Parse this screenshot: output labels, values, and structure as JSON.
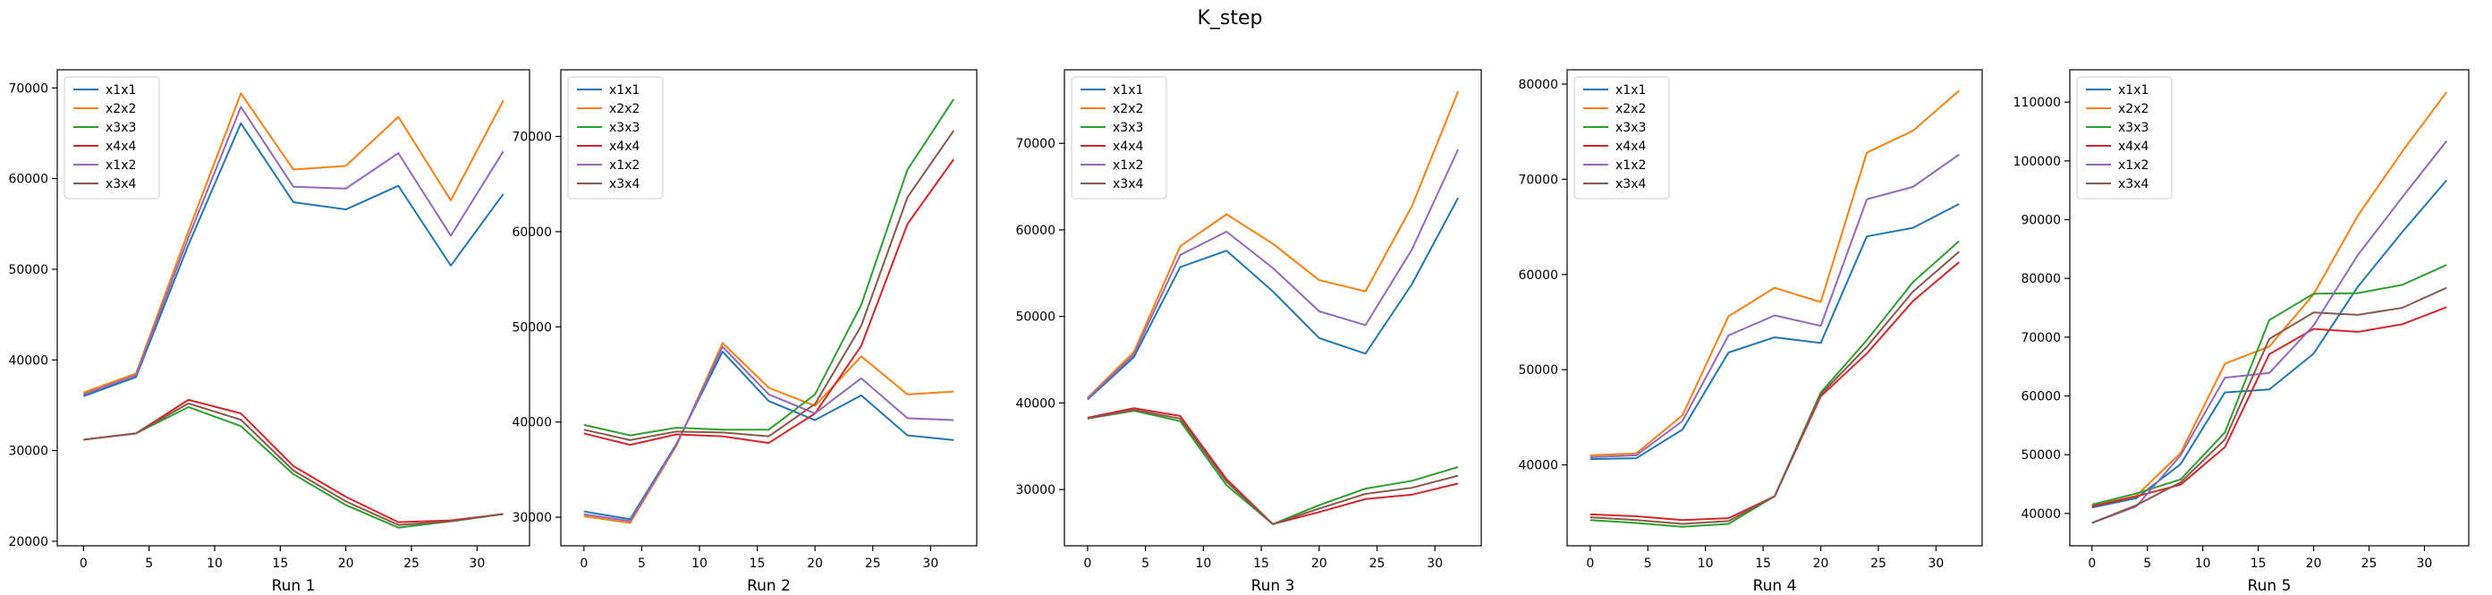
{
  "figure": {
    "suptitle": "K_step"
  },
  "colors": {
    "x1x1": "#1f77b4",
    "x2x2": "#ff7f0e",
    "x3x3": "#2ca02c",
    "x4x4": "#d62728",
    "x1x2": "#9467bd",
    "x3x4": "#8c564b"
  },
  "chart_data": [
    {
      "type": "line",
      "title": "",
      "xlabel": "Run 1",
      "ylabel": "",
      "x": [
        0,
        4,
        8,
        12,
        16,
        20,
        24,
        28,
        32
      ],
      "xlim": [
        -2,
        34
      ],
      "ylim": [
        19500,
        72000
      ],
      "xticks": [
        0,
        5,
        10,
        15,
        20,
        25,
        30
      ],
      "yticks": [
        20000,
        30000,
        40000,
        50000,
        60000,
        70000
      ],
      "grid": false,
      "legend": "top-left",
      "series": [
        {
          "name": "x1x1",
          "values": [
            36000,
            38100,
            52700,
            66100,
            57400,
            56600,
            59200,
            50400,
            58300
          ]
        },
        {
          "name": "x2x2",
          "values": [
            36400,
            38500,
            54200,
            69400,
            61000,
            61400,
            66800,
            57600,
            68600
          ]
        },
        {
          "name": "x3x3",
          "values": [
            31200,
            31900,
            34800,
            32700,
            27400,
            24000,
            21500,
            22200,
            23000
          ]
        },
        {
          "name": "x4x4",
          "values": [
            31200,
            31900,
            35600,
            34100,
            28300,
            24900,
            22100,
            22300,
            23000
          ]
        },
        {
          "name": "x1x2",
          "values": [
            36200,
            38300,
            53500,
            67900,
            59100,
            58900,
            62800,
            53700,
            63000
          ]
        },
        {
          "name": "x3x4",
          "values": [
            31200,
            31900,
            35200,
            33400,
            27800,
            24400,
            21800,
            22200,
            23000
          ]
        }
      ]
    },
    {
      "type": "line",
      "title": "",
      "xlabel": "Run 2",
      "ylabel": "",
      "x": [
        0,
        4,
        8,
        12,
        16,
        20,
        24,
        28,
        32
      ],
      "xlim": [
        -2,
        34
      ],
      "ylim": [
        27000,
        77000
      ],
      "xticks": [
        0,
        5,
        10,
        15,
        20,
        25,
        30
      ],
      "yticks": [
        30000,
        40000,
        50000,
        60000,
        70000
      ],
      "grid": false,
      "legend": "top-left",
      "series": [
        {
          "name": "x1x1",
          "values": [
            30600,
            29800,
            37700,
            47400,
            42200,
            40200,
            42800,
            38600,
            38100
          ]
        },
        {
          "name": "x2x2",
          "values": [
            30100,
            29400,
            37500,
            48300,
            43600,
            41700,
            46900,
            42900,
            43200
          ]
        },
        {
          "name": "x3x3",
          "values": [
            39700,
            38600,
            39400,
            39200,
            39200,
            42900,
            52300,
            66500,
            73900
          ]
        },
        {
          "name": "x4x4",
          "values": [
            38800,
            37600,
            38700,
            38500,
            37800,
            40900,
            48000,
            60800,
            67600
          ]
        },
        {
          "name": "x1x2",
          "values": [
            30300,
            29600,
            37600,
            47900,
            42900,
            40900,
            44600,
            40400,
            40200
          ]
        },
        {
          "name": "x3x4",
          "values": [
            39200,
            38100,
            39000,
            38900,
            38500,
            41900,
            50100,
            63600,
            70600
          ]
        }
      ]
    },
    {
      "type": "line",
      "title": "",
      "xlabel": "Run 3",
      "ylabel": "",
      "x": [
        0,
        4,
        8,
        12,
        16,
        20,
        24,
        28,
        32
      ],
      "xlim": [
        -2,
        34
      ],
      "ylim": [
        23500,
        78500
      ],
      "xticks": [
        0,
        5,
        10,
        15,
        20,
        25,
        30
      ],
      "yticks": [
        30000,
        40000,
        50000,
        60000,
        70000
      ],
      "grid": false,
      "legend": "top-left",
      "series": [
        {
          "name": "x1x1",
          "values": [
            40400,
            45300,
            55700,
            57600,
            52900,
            47500,
            45700,
            53700,
            63700
          ]
        },
        {
          "name": "x2x2",
          "values": [
            40600,
            45900,
            58100,
            61800,
            58400,
            54200,
            52900,
            62700,
            76000
          ]
        },
        {
          "name": "x3x3",
          "values": [
            38200,
            39100,
            37900,
            30500,
            26000,
            28200,
            30100,
            31000,
            32600
          ]
        },
        {
          "name": "x4x4",
          "values": [
            38300,
            39400,
            38500,
            31200,
            26000,
            27400,
            28900,
            29400,
            30700
          ]
        },
        {
          "name": "x1x2",
          "values": [
            40500,
            45600,
            57100,
            59800,
            55600,
            50600,
            49000,
            57700,
            69300
          ]
        },
        {
          "name": "x3x4",
          "values": [
            38200,
            39200,
            38200,
            30900,
            26000,
            27800,
            29500,
            30200,
            31600
          ]
        }
      ]
    },
    {
      "type": "line",
      "title": "",
      "xlabel": "Run 4",
      "ylabel": "",
      "x": [
        0,
        4,
        8,
        12,
        16,
        20,
        24,
        28,
        32
      ],
      "xlim": [
        -2,
        34
      ],
      "ylim": [
        31500,
        81500
      ],
      "xticks": [
        0,
        5,
        10,
        15,
        20,
        25,
        30
      ],
      "yticks": [
        40000,
        50000,
        60000,
        70000,
        80000
      ],
      "grid": false,
      "legend": "top-left",
      "series": [
        {
          "name": "x1x1",
          "values": [
            40600,
            40700,
            43700,
            51800,
            53400,
            52800,
            64000,
            64900,
            67400
          ]
        },
        {
          "name": "x2x2",
          "values": [
            41000,
            41200,
            45200,
            55600,
            58600,
            57100,
            72800,
            75100,
            79300
          ]
        },
        {
          "name": "x3x3",
          "values": [
            34200,
            33900,
            33500,
            33800,
            36700,
            47600,
            53100,
            59200,
            63500
          ]
        },
        {
          "name": "x4x4",
          "values": [
            34800,
            34600,
            34200,
            34400,
            36700,
            47200,
            51700,
            57200,
            61300
          ]
        },
        {
          "name": "x1x2",
          "values": [
            40800,
            41000,
            44600,
            53600,
            55700,
            54600,
            67900,
            69200,
            72600
          ]
        },
        {
          "name": "x3x4",
          "values": [
            34500,
            34200,
            33800,
            34100,
            36700,
            47400,
            52400,
            58200,
            62400
          ]
        }
      ]
    },
    {
      "type": "line",
      "title": "",
      "xlabel": "Run 5",
      "ylabel": "",
      "x": [
        0,
        4,
        8,
        12,
        16,
        20,
        24,
        28,
        32
      ],
      "xlim": [
        -2,
        34
      ],
      "ylim": [
        34500,
        115500
      ],
      "xticks": [
        0,
        5,
        10,
        15,
        20,
        25,
        30
      ],
      "yticks": [
        40000,
        50000,
        60000,
        70000,
        80000,
        90000,
        100000,
        110000
      ],
      "grid": false,
      "legend": "top-left",
      "series": [
        {
          "name": "x1x1",
          "values": [
            41000,
            42600,
            48400,
            60600,
            61100,
            67200,
            78600,
            87900,
            96700
          ]
        },
        {
          "name": "x2x2",
          "values": [
            41300,
            43000,
            50300,
            65500,
            68400,
            77300,
            90700,
            101600,
            111700
          ]
        },
        {
          "name": "x3x3",
          "values": [
            41500,
            43400,
            45800,
            53800,
            72900,
            77400,
            77500,
            78900,
            82300
          ]
        },
        {
          "name": "x4x4",
          "values": [
            41200,
            42900,
            44900,
            51300,
            67100,
            71400,
            70900,
            72200,
            75100
          ]
        },
        {
          "name": "x1x2",
          "values": [
            38400,
            41200,
            49900,
            63100,
            63900,
            72000,
            84000,
            93800,
            103400
          ]
        },
        {
          "name": "x3x4",
          "values": [
            38400,
            41400,
            45300,
            52600,
            69700,
            74200,
            73800,
            75000,
            78400
          ]
        }
      ]
    }
  ]
}
